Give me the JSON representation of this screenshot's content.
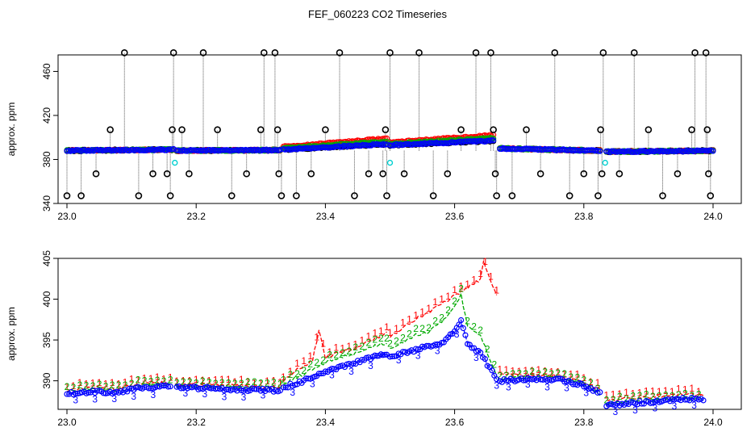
{
  "title": "FEF_060223  CO2 Timeseries",
  "chart_data": [
    {
      "type": "scatter",
      "panel": "top",
      "ylabel": "approx. ppm",
      "xlim": [
        23.0,
        24.0
      ],
      "ylim": [
        340,
        475
      ],
      "x_ticks": [
        "23.0",
        "23.2",
        "23.4",
        "23.6",
        "23.8",
        "24.0"
      ],
      "y_ticks": [
        "340",
        "380",
        "420",
        "460"
      ],
      "colors": {
        "raw": "#000000",
        "s1": "#ff0000",
        "s2": "#00aa00",
        "s3": "#0000ff",
        "cal": "#00d0d0"
      },
      "cal_points": [
        [
          23.167,
          377
        ],
        [
          23.5,
          377
        ],
        [
          23.833,
          377
        ]
      ],
      "base_segments": [
        {
          "x0": 23.0,
          "x1": 23.165,
          "y0": 388,
          "y1": 389
        },
        {
          "x0": 23.17,
          "x1": 23.33,
          "y0": 388,
          "y1": 388.5
        },
        {
          "x0": 23.335,
          "x1": 23.495,
          "y0": 389,
          "y1": 394
        },
        {
          "x0": 23.5,
          "x1": 23.66,
          "y0": 393,
          "y1": 397
        },
        {
          "x0": 23.67,
          "x1": 23.825,
          "y0": 390,
          "y1": 388
        },
        {
          "x0": 23.835,
          "x1": 24.0,
          "y0": 387,
          "y1": 388
        }
      ],
      "spikes": [
        [
          23.0,
          347
        ],
        [
          23.022,
          347
        ],
        [
          23.045,
          367
        ],
        [
          23.067,
          407
        ],
        [
          23.089,
          477
        ],
        [
          23.111,
          347
        ],
        [
          23.133,
          367
        ],
        [
          23.155,
          367
        ],
        [
          23.16,
          347
        ],
        [
          23.163,
          407
        ],
        [
          23.165,
          477
        ],
        [
          23.178,
          407
        ],
        [
          23.189,
          367
        ],
        [
          23.211,
          477
        ],
        [
          23.233,
          407
        ],
        [
          23.255,
          347
        ],
        [
          23.278,
          367
        ],
        [
          23.3,
          407
        ],
        [
          23.305,
          477
        ],
        [
          23.322,
          477
        ],
        [
          23.326,
          407
        ],
        [
          23.328,
          367
        ],
        [
          23.332,
          347
        ],
        [
          23.355,
          347
        ],
        [
          23.378,
          367
        ],
        [
          23.4,
          407
        ],
        [
          23.422,
          477
        ],
        [
          23.445,
          347
        ],
        [
          23.467,
          367
        ],
        [
          23.489,
          367
        ],
        [
          23.493,
          407
        ],
        [
          23.495,
          347
        ],
        [
          23.5,
          477
        ],
        [
          23.522,
          367
        ],
        [
          23.545,
          477
        ],
        [
          23.567,
          347
        ],
        [
          23.589,
          367
        ],
        [
          23.61,
          407
        ],
        [
          23.633,
          477
        ],
        [
          23.656,
          477
        ],
        [
          23.66,
          407
        ],
        [
          23.663,
          367
        ],
        [
          23.665,
          347
        ],
        [
          23.689,
          347
        ],
        [
          23.711,
          407
        ],
        [
          23.733,
          367
        ],
        [
          23.755,
          477
        ],
        [
          23.778,
          347
        ],
        [
          23.8,
          367
        ],
        [
          23.822,
          347
        ],
        [
          23.826,
          407
        ],
        [
          23.828,
          367
        ],
        [
          23.83,
          477
        ],
        [
          23.855,
          367
        ],
        [
          23.878,
          477
        ],
        [
          23.9,
          407
        ],
        [
          23.922,
          347
        ],
        [
          23.945,
          367
        ],
        [
          23.967,
          407
        ],
        [
          23.972,
          477
        ],
        [
          23.989,
          477
        ],
        [
          23.991,
          407
        ],
        [
          23.993,
          367
        ],
        [
          23.996,
          347
        ]
      ]
    },
    {
      "type": "line",
      "panel": "bottom",
      "ylabel": "approx. ppm",
      "xlim": [
        23.0,
        24.0
      ],
      "ylim": [
        386.5,
        405
      ],
      "x_ticks": [
        "23.0",
        "23.2",
        "23.4",
        "23.6",
        "23.8",
        "24.0"
      ],
      "y_ticks": [
        "390",
        "395",
        "400",
        "405"
      ],
      "series": [
        {
          "label": "1",
          "color": "#ff0000",
          "segments": [
            [
              [
                23.0,
                388.8
              ],
              [
                23.04,
                389.2
              ],
              [
                23.08,
                389.0
              ],
              [
                23.11,
                389.6
              ],
              [
                23.16,
                389.8
              ]
            ],
            [
              [
                23.17,
                389.5
              ],
              [
                23.25,
                389.4
              ],
              [
                23.33,
                389.2
              ]
            ],
            [
              [
                23.335,
                390.0
              ],
              [
                23.36,
                391.6
              ],
              [
                23.38,
                392.4
              ],
              [
                23.39,
                396.2
              ],
              [
                23.4,
                392.8
              ],
              [
                23.42,
                393.4
              ],
              [
                23.44,
                393.8
              ],
              [
                23.46,
                394.6
              ],
              [
                23.48,
                395.2
              ],
              [
                23.495,
                396.0
              ]
            ],
            [
              [
                23.5,
                395.2
              ],
              [
                23.52,
                396.6
              ],
              [
                23.54,
                397.6
              ],
              [
                23.56,
                398.4
              ],
              [
                23.58,
                399.4
              ],
              [
                23.6,
                400.4
              ],
              [
                23.62,
                401.4
              ],
              [
                23.64,
                402.4
              ],
              [
                23.645,
                404.6
              ],
              [
                23.65,
                403.6
              ],
              [
                23.665,
                400.5
              ]
            ],
            [
              [
                23.67,
                390.8
              ],
              [
                23.72,
                390.6
              ],
              [
                23.76,
                390.6
              ],
              [
                23.8,
                389.8
              ],
              [
                23.825,
                389.0
              ]
            ],
            [
              [
                23.835,
                387.6
              ],
              [
                23.9,
                388.0
              ],
              [
                23.96,
                388.4
              ],
              [
                23.985,
                388.2
              ]
            ]
          ]
        },
        {
          "label": "2",
          "color": "#00aa00",
          "segments": [
            [
              [
                23.0,
                388.6
              ],
              [
                23.04,
                388.9
              ],
              [
                23.08,
                388.8
              ],
              [
                23.11,
                389.4
              ],
              [
                23.16,
                389.5
              ]
            ],
            [
              [
                23.17,
                389.3
              ],
              [
                23.25,
                389.2
              ],
              [
                23.33,
                389.0
              ]
            ],
            [
              [
                23.335,
                389.6
              ],
              [
                23.36,
                390.6
              ],
              [
                23.38,
                391.4
              ],
              [
                23.4,
                392.2
              ],
              [
                23.42,
                392.8
              ],
              [
                23.44,
                393.2
              ],
              [
                23.46,
                393.8
              ],
              [
                23.48,
                394.4
              ],
              [
                23.495,
                394.6
              ]
            ],
            [
              [
                23.5,
                394.0
              ],
              [
                23.52,
                394.8
              ],
              [
                23.54,
                395.6
              ],
              [
                23.56,
                396.0
              ],
              [
                23.58,
                397.2
              ],
              [
                23.6,
                399.2
              ],
              [
                23.61,
                400.6
              ],
              [
                23.62,
                396.6
              ],
              [
                23.64,
                395.6
              ],
              [
                23.665,
                390.6
              ]
            ],
            [
              [
                23.67,
                390.2
              ],
              [
                23.72,
                390.4
              ],
              [
                23.76,
                390.4
              ],
              [
                23.8,
                389.6
              ],
              [
                23.825,
                388.2
              ]
            ],
            [
              [
                23.835,
                387.2
              ],
              [
                23.9,
                387.6
              ],
              [
                23.96,
                387.8
              ],
              [
                23.985,
                387.6
              ]
            ]
          ]
        },
        {
          "label": "3",
          "color": "#0000ff",
          "segments": [
            [
              [
                23.0,
                388.4
              ],
              [
                23.04,
                388.7
              ],
              [
                23.08,
                388.6
              ],
              [
                23.11,
                389.2
              ],
              [
                23.16,
                389.3
              ]
            ],
            [
              [
                23.17,
                389.2
              ],
              [
                23.25,
                389.0
              ],
              [
                23.33,
                388.8
              ]
            ],
            [
              [
                23.335,
                389.2
              ],
              [
                23.36,
                389.8
              ],
              [
                23.38,
                390.4
              ],
              [
                23.4,
                391.0
              ],
              [
                23.42,
                391.6
              ],
              [
                23.44,
                392.0
              ],
              [
                23.46,
                392.6
              ],
              [
                23.48,
                393.0
              ],
              [
                23.495,
                393.2
              ]
            ],
            [
              [
                23.5,
                392.8
              ],
              [
                23.52,
                393.4
              ],
              [
                23.54,
                393.8
              ],
              [
                23.56,
                394.2
              ],
              [
                23.58,
                394.6
              ],
              [
                23.6,
                396.0
              ],
              [
                23.61,
                397.4
              ],
              [
                23.62,
                394.4
              ],
              [
                23.64,
                393.4
              ],
              [
                23.665,
                390.2
              ]
            ],
            [
              [
                23.67,
                390.0
              ],
              [
                23.72,
                390.2
              ],
              [
                23.76,
                390.2
              ],
              [
                23.8,
                389.4
              ],
              [
                23.825,
                388.6
              ]
            ],
            [
              [
                23.835,
                387.0
              ],
              [
                23.9,
                387.4
              ],
              [
                23.96,
                387.8
              ],
              [
                23.985,
                387.6
              ]
            ]
          ]
        }
      ]
    }
  ]
}
